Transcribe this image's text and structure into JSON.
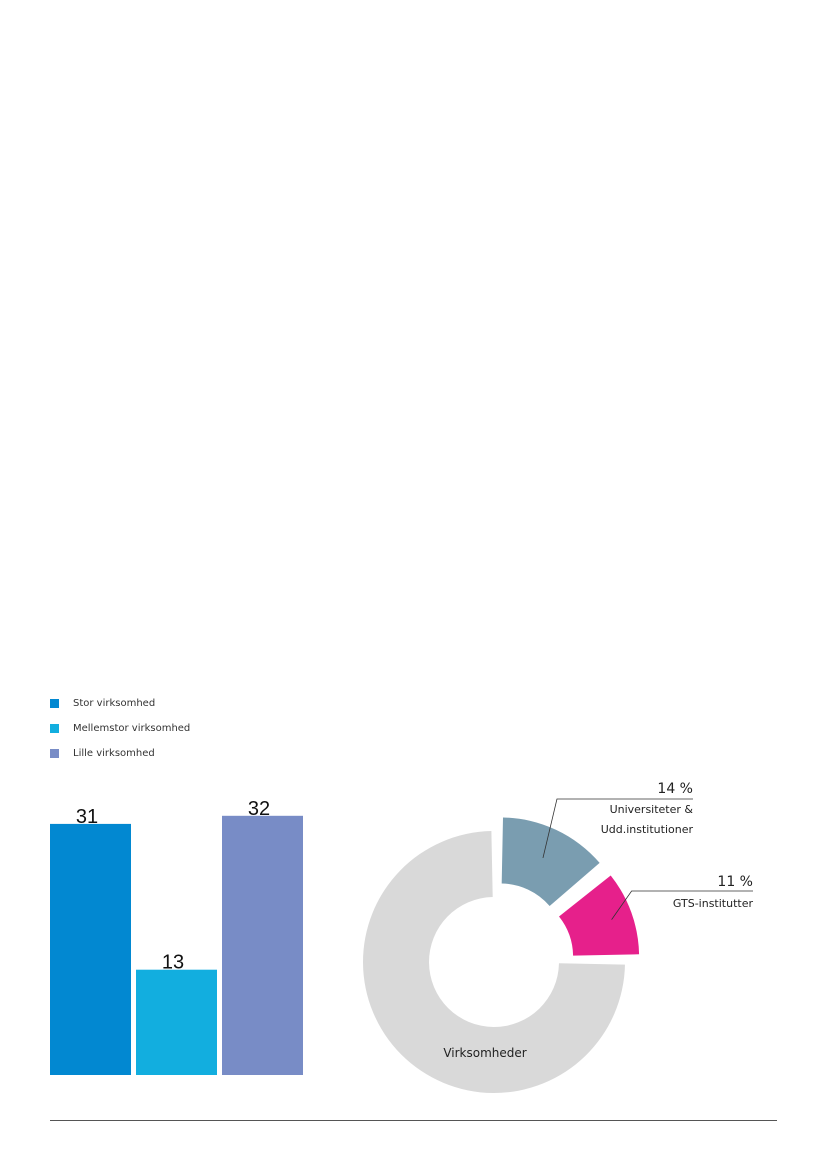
{
  "chart_data": [
    {
      "type": "bar",
      "categories": [
        "Stor virksomhed",
        "Mellemstor virksomhed",
        "Lille virksomhed"
      ],
      "values": [
        31,
        13,
        32
      ],
      "data_labels": [
        "31",
        "13",
        "32"
      ],
      "colors": [
        "#0288d1",
        "#12aedf",
        "#788cc6"
      ],
      "legend_position": "top-left",
      "grid": false
    },
    {
      "type": "pie",
      "categories": [
        "Universiteter & Udd.institutioner",
        "GTS-institutter",
        "Virksomheder"
      ],
      "values": [
        14,
        11,
        75
      ],
      "labels": [
        {
          "value": "14 %",
          "name_lines": [
            "Universiteter &",
            "Udd.institutioner"
          ]
        },
        {
          "value": "11 %",
          "name_lines": [
            "GTS-institutter"
          ]
        },
        {
          "value": "",
          "name_lines": [
            "Virksomheder"
          ]
        }
      ],
      "colors": [
        "#7a9db0",
        "#e6208b",
        "#d9d9d9"
      ]
    }
  ]
}
